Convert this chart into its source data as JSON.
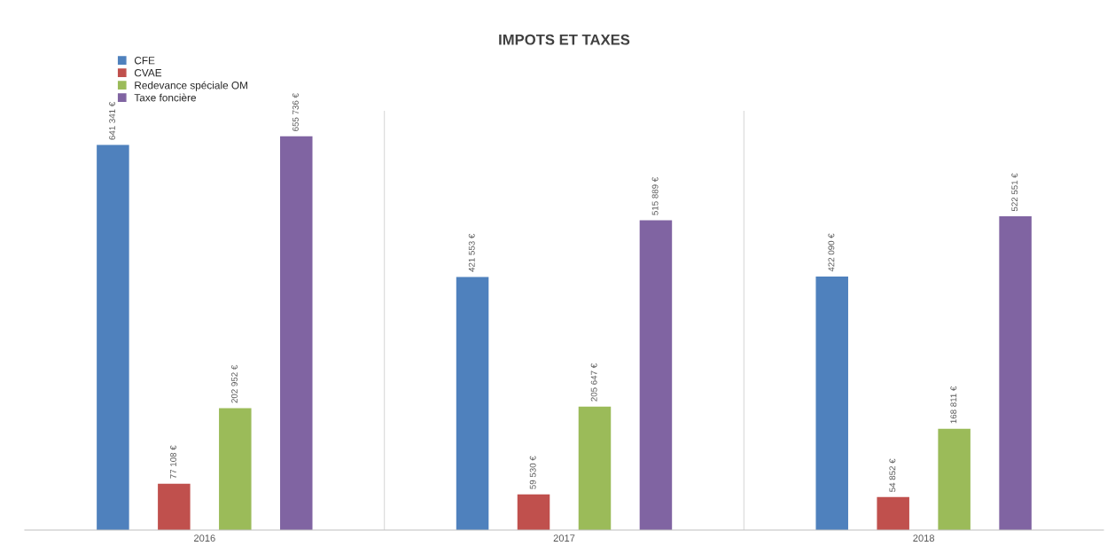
{
  "chart_data": {
    "type": "bar",
    "title": "IMPOTS ET TAXES",
    "categories": [
      "2016",
      "2017",
      "2018"
    ],
    "series": [
      {
        "name": "CFE",
        "color": "#4f81bd",
        "values": [
          641341,
          421553,
          422090
        ],
        "value_labels": [
          "641 341 €",
          "421 553 €",
          "422 090 €"
        ]
      },
      {
        "name": "CVAE",
        "color": "#c0504d",
        "values": [
          77108,
          59530,
          54852
        ],
        "value_labels": [
          "77 108 €",
          "59 530 €",
          "54 852 €"
        ]
      },
      {
        "name": "Redevance spéciale OM",
        "color": "#9bbb59",
        "values": [
          202952,
          205647,
          168811
        ],
        "value_labels": [
          "202 952 €",
          "205 647 €",
          "168 811 €"
        ]
      },
      {
        "name": "Taxe foncière",
        "color": "#8064a2",
        "values": [
          655736,
          515889,
          522551
        ],
        "value_labels": [
          "655 736 €",
          "515 889 €",
          "522 551 €"
        ]
      }
    ],
    "grid": "x",
    "legend": "top left",
    "tick_labels": "x"
  }
}
